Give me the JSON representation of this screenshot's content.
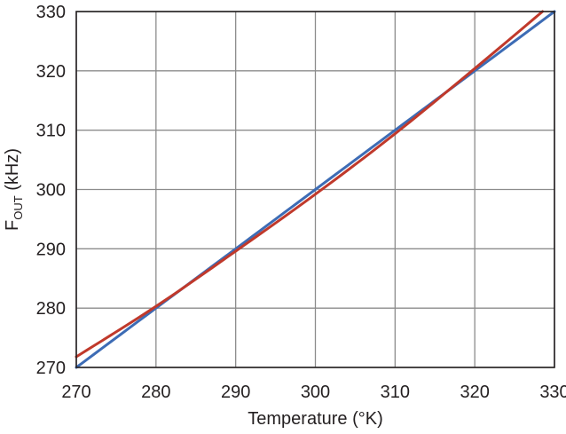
{
  "chart_data": {
    "type": "line",
    "title": "",
    "xlabel": "Temperature (°K)",
    "ylabel": {
      "main": "F",
      "subscript": "OUT",
      "suffix": " (kHz)"
    },
    "xlim": [
      270,
      330
    ],
    "ylim": [
      270,
      330
    ],
    "x_ticks": [
      270,
      280,
      290,
      300,
      310,
      320,
      330
    ],
    "y_ticks": [
      270,
      280,
      290,
      300,
      310,
      320,
      330
    ],
    "grid": true,
    "legend": "none",
    "series": [
      {
        "color": "#3d6cb5",
        "x": [
          270,
          280,
          290,
          300,
          310,
          320,
          330
        ],
        "y": [
          270,
          280,
          290,
          300,
          310,
          320,
          330
        ]
      },
      {
        "color": "#c0392b",
        "x": [
          270,
          280,
          290,
          300,
          310,
          320,
          328.5
        ],
        "y": [
          271.8,
          280.3,
          289.6,
          299.2,
          309.4,
          320.4,
          330
        ]
      }
    ]
  }
}
